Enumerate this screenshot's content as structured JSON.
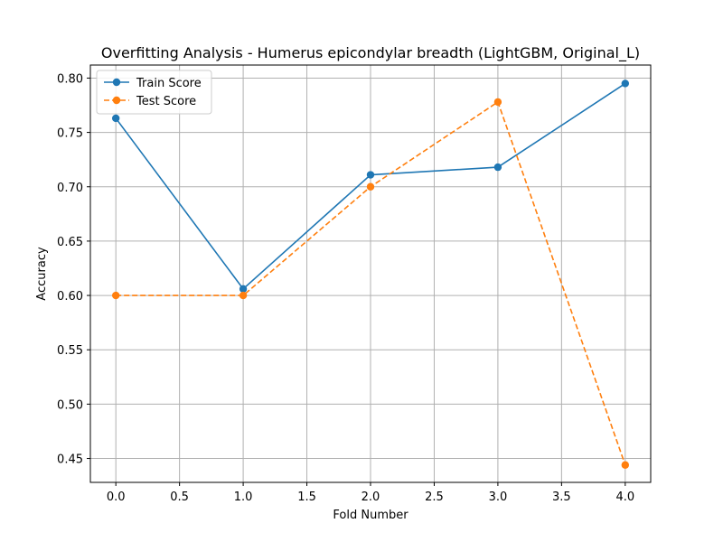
{
  "chart_data": {
    "type": "line",
    "title": "Overfitting Analysis - Humerus epicondylar breadth (LightGBM, Original_L)",
    "xlabel": "Fold Number",
    "ylabel": "Accuracy",
    "xlim": [
      -0.2,
      4.2
    ],
    "ylim": [
      0.428,
      0.812
    ],
    "xticks": [
      0.0,
      0.5,
      1.0,
      1.5,
      2.0,
      2.5,
      3.0,
      3.5,
      4.0
    ],
    "xtick_labels": [
      "0.0",
      "0.5",
      "1.0",
      "1.5",
      "2.0",
      "2.5",
      "3.0",
      "3.5",
      "4.0"
    ],
    "yticks": [
      0.45,
      0.5,
      0.55,
      0.6,
      0.65,
      0.7,
      0.75,
      0.8
    ],
    "ytick_labels": [
      "0.45",
      "0.50",
      "0.55",
      "0.60",
      "0.65",
      "0.70",
      "0.75",
      "0.80"
    ],
    "grid": true,
    "legend_position": "top-left",
    "x": [
      0,
      1,
      2,
      3,
      4
    ],
    "series": [
      {
        "name": "Train Score",
        "values": [
          0.763,
          0.606,
          0.711,
          0.718,
          0.795
        ],
        "color": "#1f77b4",
        "linestyle": "solid",
        "marker": "circle"
      },
      {
        "name": "Test Score",
        "values": [
          0.6,
          0.6,
          0.7,
          0.778,
          0.444
        ],
        "color": "#ff7f0e",
        "linestyle": "dashed",
        "marker": "circle"
      }
    ]
  }
}
